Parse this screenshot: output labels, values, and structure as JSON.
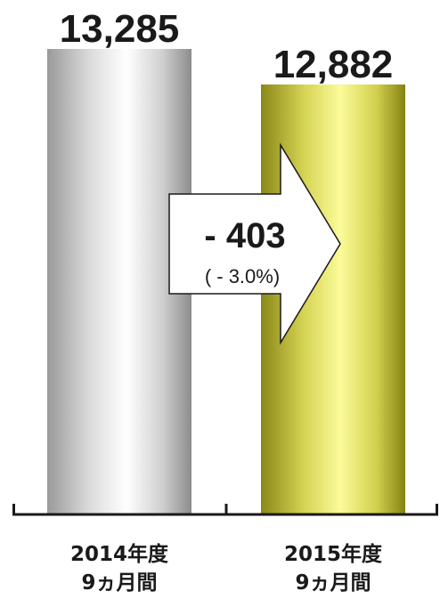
{
  "chart_data": {
    "type": "bar",
    "categories": [
      {
        "line1": "2014年度",
        "line2": "9ヵ月間"
      },
      {
        "line1": "2015年度",
        "line2": "9ヵ月間"
      }
    ],
    "values": [
      13285,
      12882
    ],
    "value_labels": [
      "13,285",
      "12,882"
    ],
    "title": "",
    "xlabel": "",
    "ylabel": "",
    "bar_colors": [
      "#a8a8a8",
      "#8f8c1c"
    ],
    "change": {
      "label": "- 403",
      "percent_label": "( - 3.0%)"
    },
    "grid": false
  }
}
